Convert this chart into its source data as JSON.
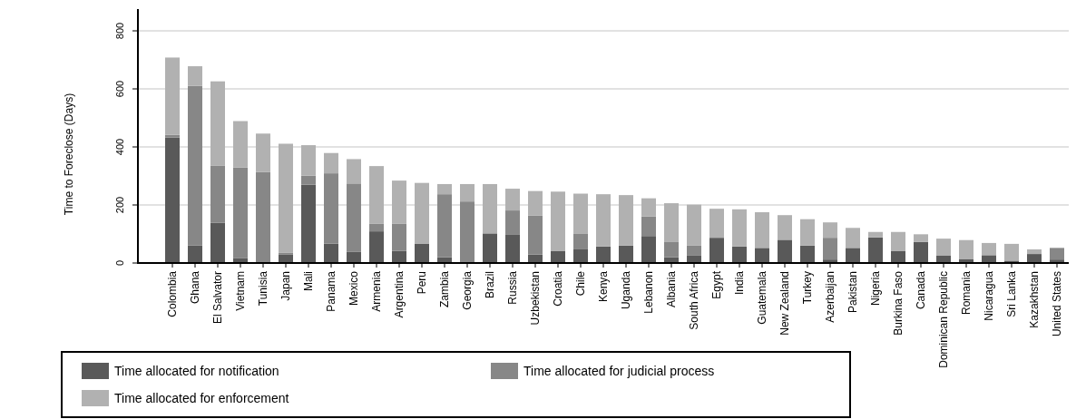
{
  "chart_data": {
    "type": "bar",
    "stacked": true,
    "ylabel": "Time to Foreclose (Days)",
    "categories": [
      "Colombia",
      "Ghana",
      "El Salvator",
      "Vietnam",
      "Tunisia",
      "Japan",
      "Mali",
      "Panama",
      "Mexico",
      "Armenia",
      "Argentina",
      "Peru",
      "Zambia",
      "Georgia",
      "Brazil",
      "Russia",
      "Uzbekistan",
      "Croatia",
      "Chile",
      "Kenya",
      "Uganda",
      "Lebanon",
      "Albania",
      "South Africa",
      "Egypt",
      "India",
      "Guatemala",
      "New Zealand",
      "Turkey",
      "Azerbaijan",
      "Pakistan",
      "Nigeria",
      "Burkina Faso",
      "Canada",
      "Dominican Republic",
      "Romania",
      "Nicaragua",
      "Sri Lanka",
      "Kazakhstan",
      "United States"
    ],
    "series": [
      {
        "name": "Time allocated for notification",
        "color": "#595959",
        "values": [
          432,
          60,
          139,
          16,
          0,
          30,
          270,
          67,
          38,
          109,
          42,
          67,
          20,
          0,
          102,
          97,
          29,
          42,
          49,
          57,
          60,
          93,
          20,
          27,
          87,
          57,
          52,
          80,
          60,
          12,
          52,
          88,
          42,
          73,
          25,
          14,
          27,
          8,
          31,
          12
        ]
      },
      {
        "name": "Time allocated for judicial process",
        "color": "#878787",
        "values": [
          10,
          550,
          197,
          313,
          314,
          6,
          31,
          242,
          236,
          27,
          94,
          0,
          217,
          212,
          0,
          84,
          134,
          0,
          53,
          0,
          0,
          67,
          52,
          34,
          0,
          0,
          0,
          0,
          0,
          75,
          0,
          0,
          0,
          0,
          0,
          0,
          0,
          0,
          0,
          40
        ]
      },
      {
        "name": "Time allocated for enforcement",
        "color": "#b1b1b1",
        "values": [
          266,
          68,
          290,
          160,
          132,
          375,
          105,
          70,
          84,
          198,
          148,
          209,
          35,
          60,
          170,
          75,
          85,
          204,
          137,
          180,
          174,
          63,
          134,
          140,
          100,
          128,
          123,
          85,
          91,
          53,
          69,
          19,
          65,
          26,
          59,
          65,
          42,
          58,
          16,
          0
        ]
      }
    ],
    "ylim": [
      0,
      875
    ],
    "yticks": [
      0,
      200,
      400,
      600,
      800
    ],
    "grid": "y",
    "legend": "bottom"
  }
}
